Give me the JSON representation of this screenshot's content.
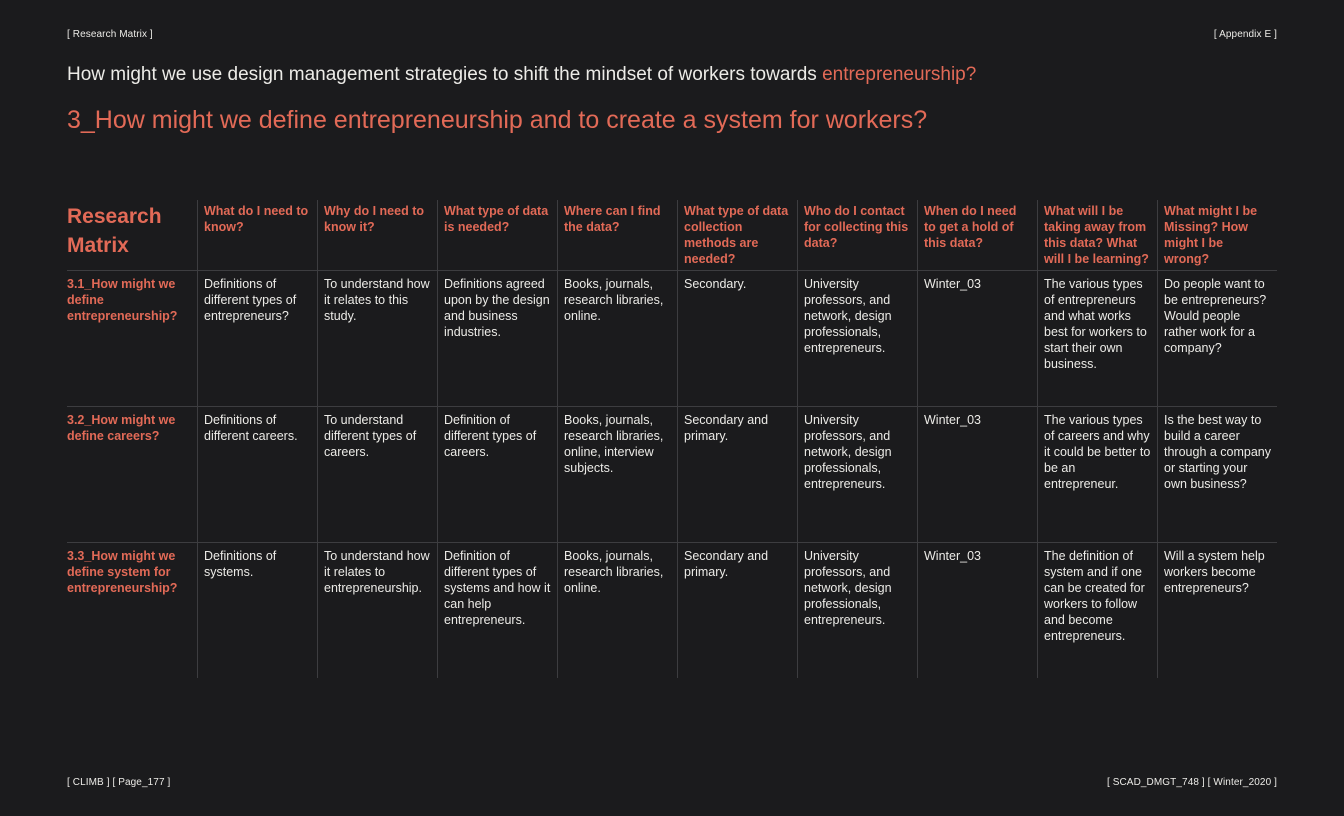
{
  "header": {
    "left": "[ Research Matrix ]",
    "right": "[ Appendix E ]"
  },
  "question": {
    "text": "How might we use design management strategies to shift the mindset of workers towards ",
    "highlight": "entrepreneurship?"
  },
  "subquestion": "3_How might we define entrepreneurship and to create a system for workers?",
  "matrix": {
    "title": "Research Matrix",
    "columns": [
      "What do I need to know?",
      "Why do I need to know it?",
      "What type of data is needed?",
      "Where can I find the data?",
      "What type of data collection methods are needed?",
      "Who do I contact for collecting this data?",
      "When do I need to get a hold of this data?",
      "What will I be taking away from this data? What will I be learning?",
      "What might I be Missing? How might I be wrong?"
    ],
    "rows": [
      {
        "label": "3.1_How might we define entrepreneurship?",
        "cells": [
          "Definitions of different types of entrepreneurs?",
          "To understand how it relates to this study.",
          "Definitions agreed upon by the design and business industries.",
          "Books, journals, research libraries, online.",
          "Secondary.",
          "University professors, and network, design professionals, entrepreneurs.",
          "Winter_03",
          "The various types of entrepreneurs and what works best for workers to start their own business.",
          "Do people want to be entrepreneurs? Would people rather work for a company?"
        ]
      },
      {
        "label": "3.2_How might we define careers?",
        "cells": [
          "Definitions of different careers.",
          "To understand different types of careers.",
          "Definition of different types of careers.",
          "Books, journals, research libraries, online, interview subjects.",
          "Secondary and primary.",
          "University professors, and network, design professionals, entrepreneurs.",
          "Winter_03",
          "The various types of careers and why it could be better to be an entrepreneur.",
          "Is the best way to build a career through a company or starting your own business?"
        ]
      },
      {
        "label": "3.3_How might we define system for entrepreneurship?",
        "cells": [
          "Definitions of systems.",
          "To understand how it relates to entrepreneurship.",
          "Definition of different types of systems and how it can help entrepreneurs.",
          "Books, journals, research libraries, online.",
          "Secondary and primary.",
          "University professors, and network, design professionals, entrepreneurs.",
          "Winter_03",
          "The definition of system and if one can be created for workers to follow and become entrepreneurs.",
          "Will a system help workers become entrepreneurs?"
        ]
      }
    ]
  },
  "footer": {
    "left": "[ CLIMB ] [ Page_177 ]",
    "right": "[ SCAD_DMGT_748 ] [ Winter_2020 ]"
  },
  "colors": {
    "background": "#1b1b1d",
    "text": "#ecebe7",
    "accent": "#e26a57",
    "rule": "#3d3d40"
  }
}
